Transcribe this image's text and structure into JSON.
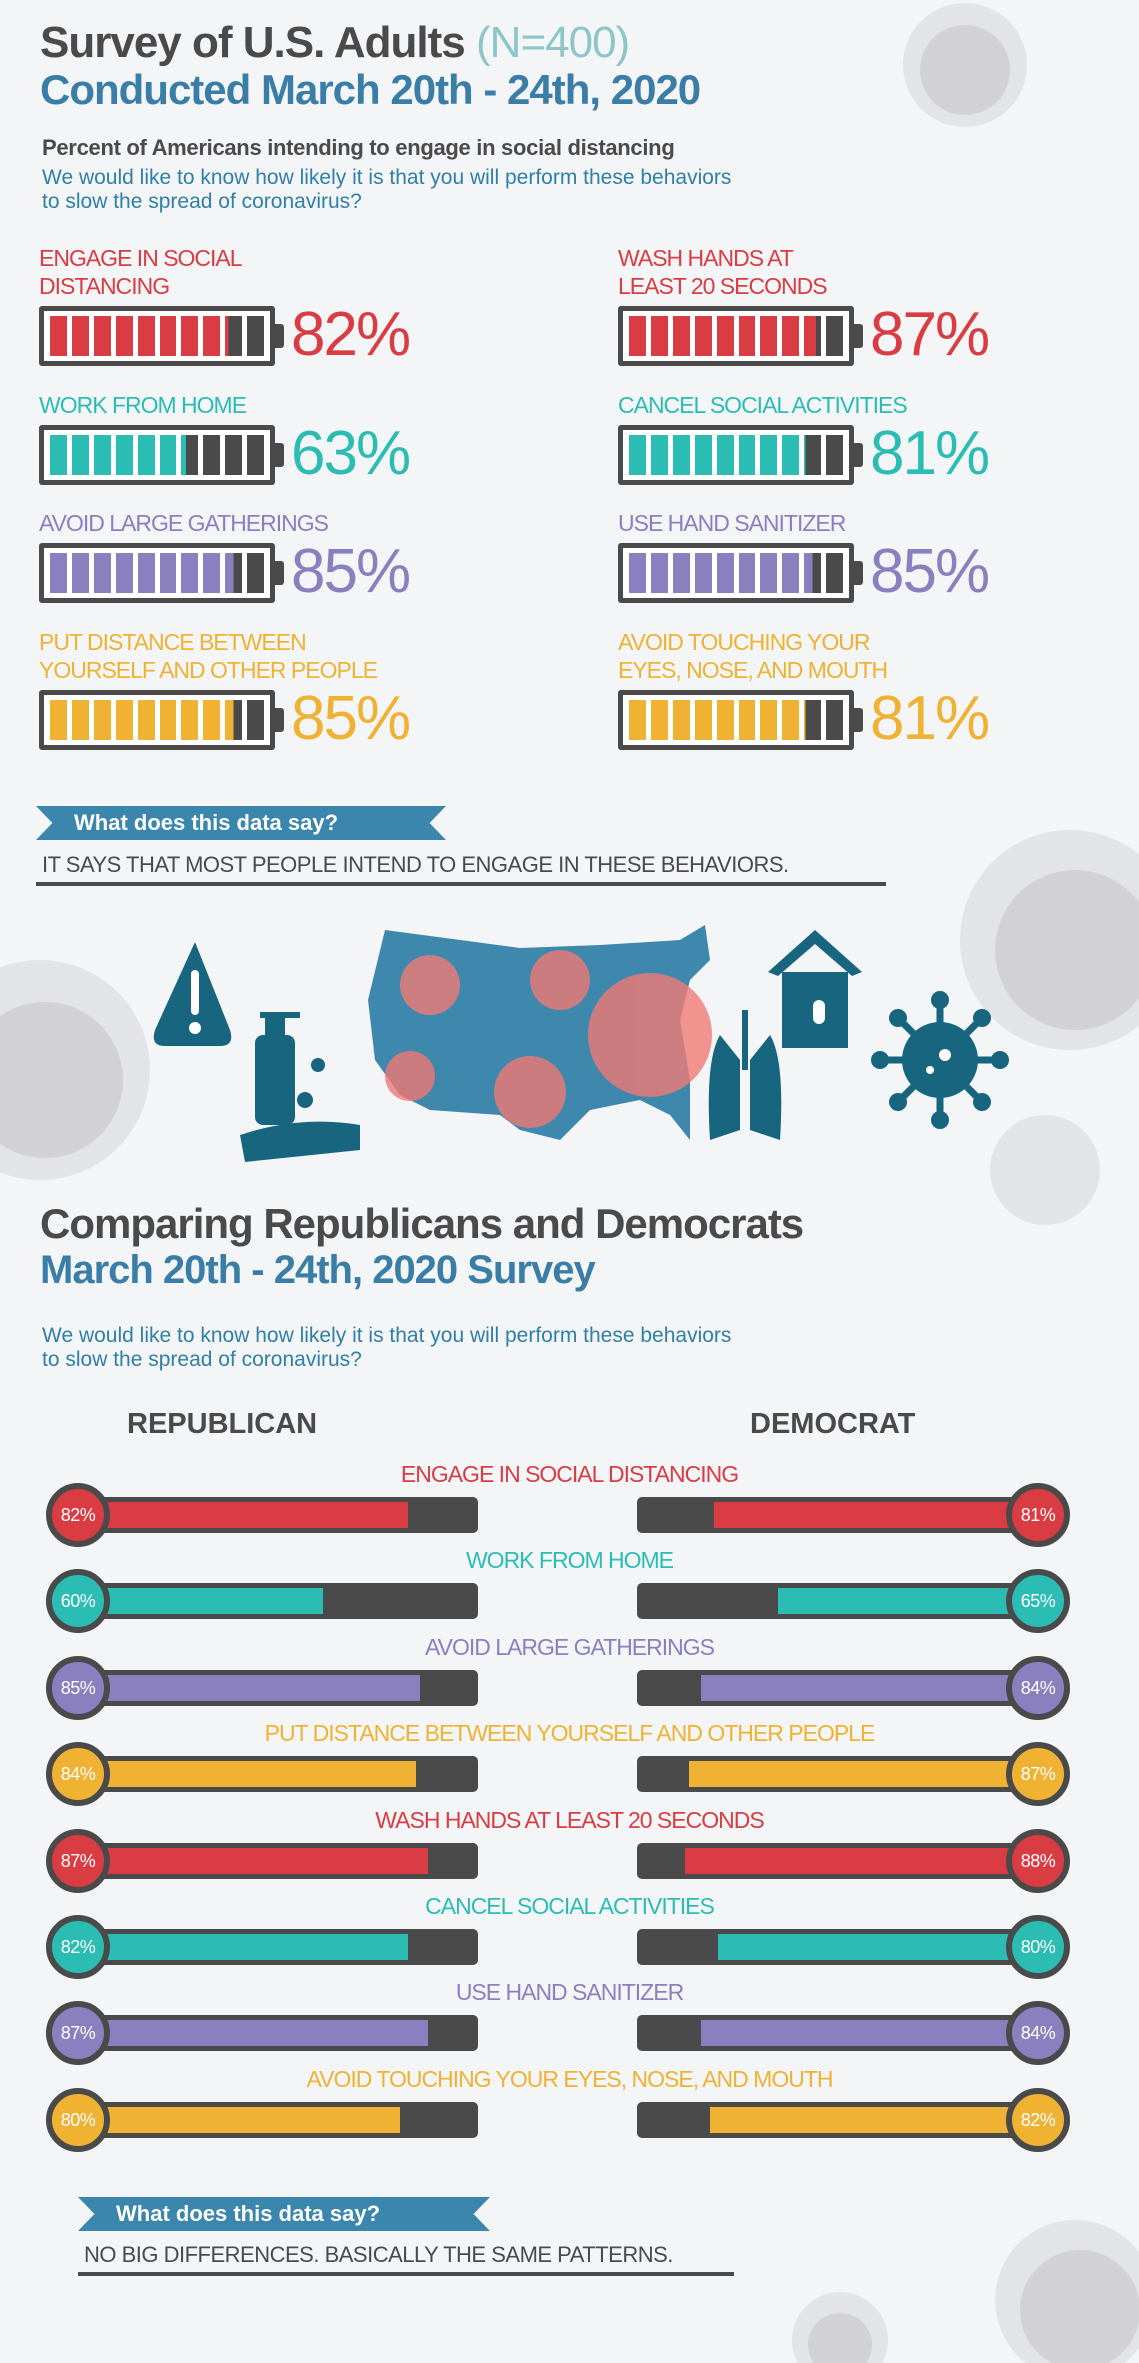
{
  "header": {
    "title": "Survey of U.S. Adults",
    "sample": "(N=400)",
    "dates": "Conducted March 20th - 24th, 2020",
    "subtitle": "Percent of Americans intending to engage in social distancing",
    "question": "We would like to know how likely it is that you will perform these behaviors\nto slow the spread of coronavirus?"
  },
  "colors": {
    "red": "#d93c42",
    "teal": "#2bbdb4",
    "purple": "#8b80bf",
    "orange": "#efb233",
    "dark": "#4a4a4a",
    "blue": "#3a7ea8"
  },
  "chart_data": [
    {
      "type": "bar",
      "title": "Percent of Americans intending to engage in social distancing",
      "unit": "%",
      "items": [
        {
          "label": "ENGAGE IN SOCIAL\nDISTANCING",
          "value": 82,
          "color": "#d93c42",
          "display": "82%"
        },
        {
          "label": "WASH HANDS AT\nLEAST 20 SECONDS",
          "value": 87,
          "color": "#d93c42",
          "display": "87%"
        },
        {
          "label": "WORK FROM HOME",
          "value": 63,
          "color": "#2bbdb4",
          "display": "63%"
        },
        {
          "label": "CANCEL SOCIAL ACTIVITIES",
          "value": 81,
          "color": "#2bbdb4",
          "display": "81%"
        },
        {
          "label": "AVOID LARGE GATHERINGS",
          "value": 85,
          "color": "#8b80bf",
          "display": "85%"
        },
        {
          "label": "USE HAND SANITIZER",
          "value": 85,
          "color": "#8b80bf",
          "display": "85%"
        },
        {
          "label": "PUT DISTANCE BETWEEN\nYOURSELF AND OTHER PEOPLE",
          "value": 85,
          "color": "#efb233",
          "display": "85%"
        },
        {
          "label": "AVOID TOUCHING YOUR\nEYES, NOSE, AND MOUTH",
          "value": 81,
          "color": "#efb233",
          "display": "81%"
        }
      ]
    },
    {
      "type": "bar",
      "title": "Comparing Republicans and Democrats",
      "series_names": [
        "REPUBLICAN",
        "DEMOCRAT"
      ],
      "rows": [
        {
          "label": "ENGAGE IN SOCIAL DISTANCING",
          "rep": 82,
          "dem": 81,
          "rep_label": "82%",
          "dem_label": "81%",
          "color": "#d93c42"
        },
        {
          "label": "WORK FROM HOME",
          "rep": 60,
          "dem": 65,
          "rep_label": "60%",
          "dem_label": "65%",
          "color": "#2bbdb4"
        },
        {
          "label": "AVOID LARGE GATHERINGS",
          "rep": 85,
          "dem": 84,
          "rep_label": "85%",
          "dem_label": "84%",
          "color": "#8b80bf"
        },
        {
          "label": "PUT DISTANCE BETWEEN YOURSELF AND OTHER PEOPLE",
          "rep": 84,
          "dem": 87,
          "rep_label": "84%",
          "dem_label": "87%",
          "color": "#efb233"
        },
        {
          "label": "WASH HANDS AT  LEAST 20 SECONDS",
          "rep": 87,
          "dem": 88,
          "rep_label": "87%",
          "dem_label": "88%",
          "color": "#d93c42"
        },
        {
          "label": "CANCEL SOCIAL ACTIVITIES",
          "rep": 82,
          "dem": 80,
          "rep_label": "82%",
          "dem_label": "80%",
          "color": "#2bbdb4"
        },
        {
          "label": "USE HAND SANITIZER",
          "rep": 87,
          "dem": 84,
          "rep_label": "87%",
          "dem_label": "84%",
          "color": "#8b80bf"
        },
        {
          "label": "AVOID TOUCHING YOUR EYES, NOSE, AND MOUTH",
          "rep": 80,
          "dem": 82,
          "rep_label": "80%",
          "dem_label": "82%",
          "color": "#efb233"
        }
      ]
    }
  ],
  "section1": {
    "banner": "What does this data say?",
    "answer": "IT SAYS THAT MOST PEOPLE INTEND TO ENGAGE IN THESE BEHAVIORS."
  },
  "section2": {
    "title": "Comparing Republicans and Democrats",
    "dates": "March 20th - 24th, 2020 Survey",
    "question": "We would like to know how likely it is that you will perform these behaviors\nto slow the spread of coronavirus?",
    "republican": "REPUBLICAN",
    "democrat": "DEMOCRAT",
    "banner": "What does this data say?",
    "answer": "NO BIG DIFFERENCES. BASICALLY THE SAME PATTERNS."
  }
}
